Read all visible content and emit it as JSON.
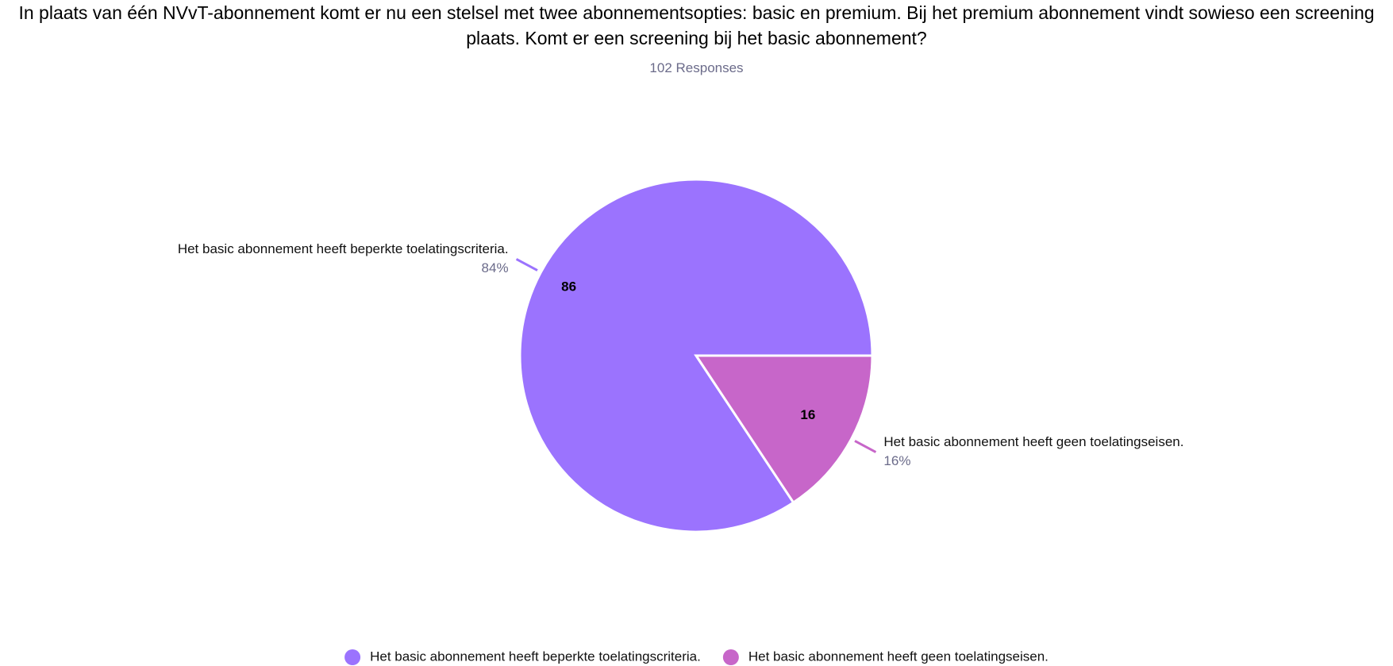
{
  "chart_data": {
    "type": "pie",
    "title": "In plaats van één NVvT-abonnement komt er nu een stelsel met twee abonnementsopties: basic en premium. Bij het premium abonnement vindt sowieso een screening plaats. Komt er een screening bij het basic abonnement?",
    "subtitle": "102 Responses",
    "categories": [
      "Het basic abonnement heeft beperkte toelatingscriteria.",
      "Het basic abonnement heeft geen toelatingseisen."
    ],
    "values": [
      86,
      16
    ],
    "percentages": [
      84,
      16
    ],
    "percentage_labels": [
      "84%",
      "16%"
    ],
    "colors": [
      "#9b73fe",
      "#c766c9"
    ]
  }
}
